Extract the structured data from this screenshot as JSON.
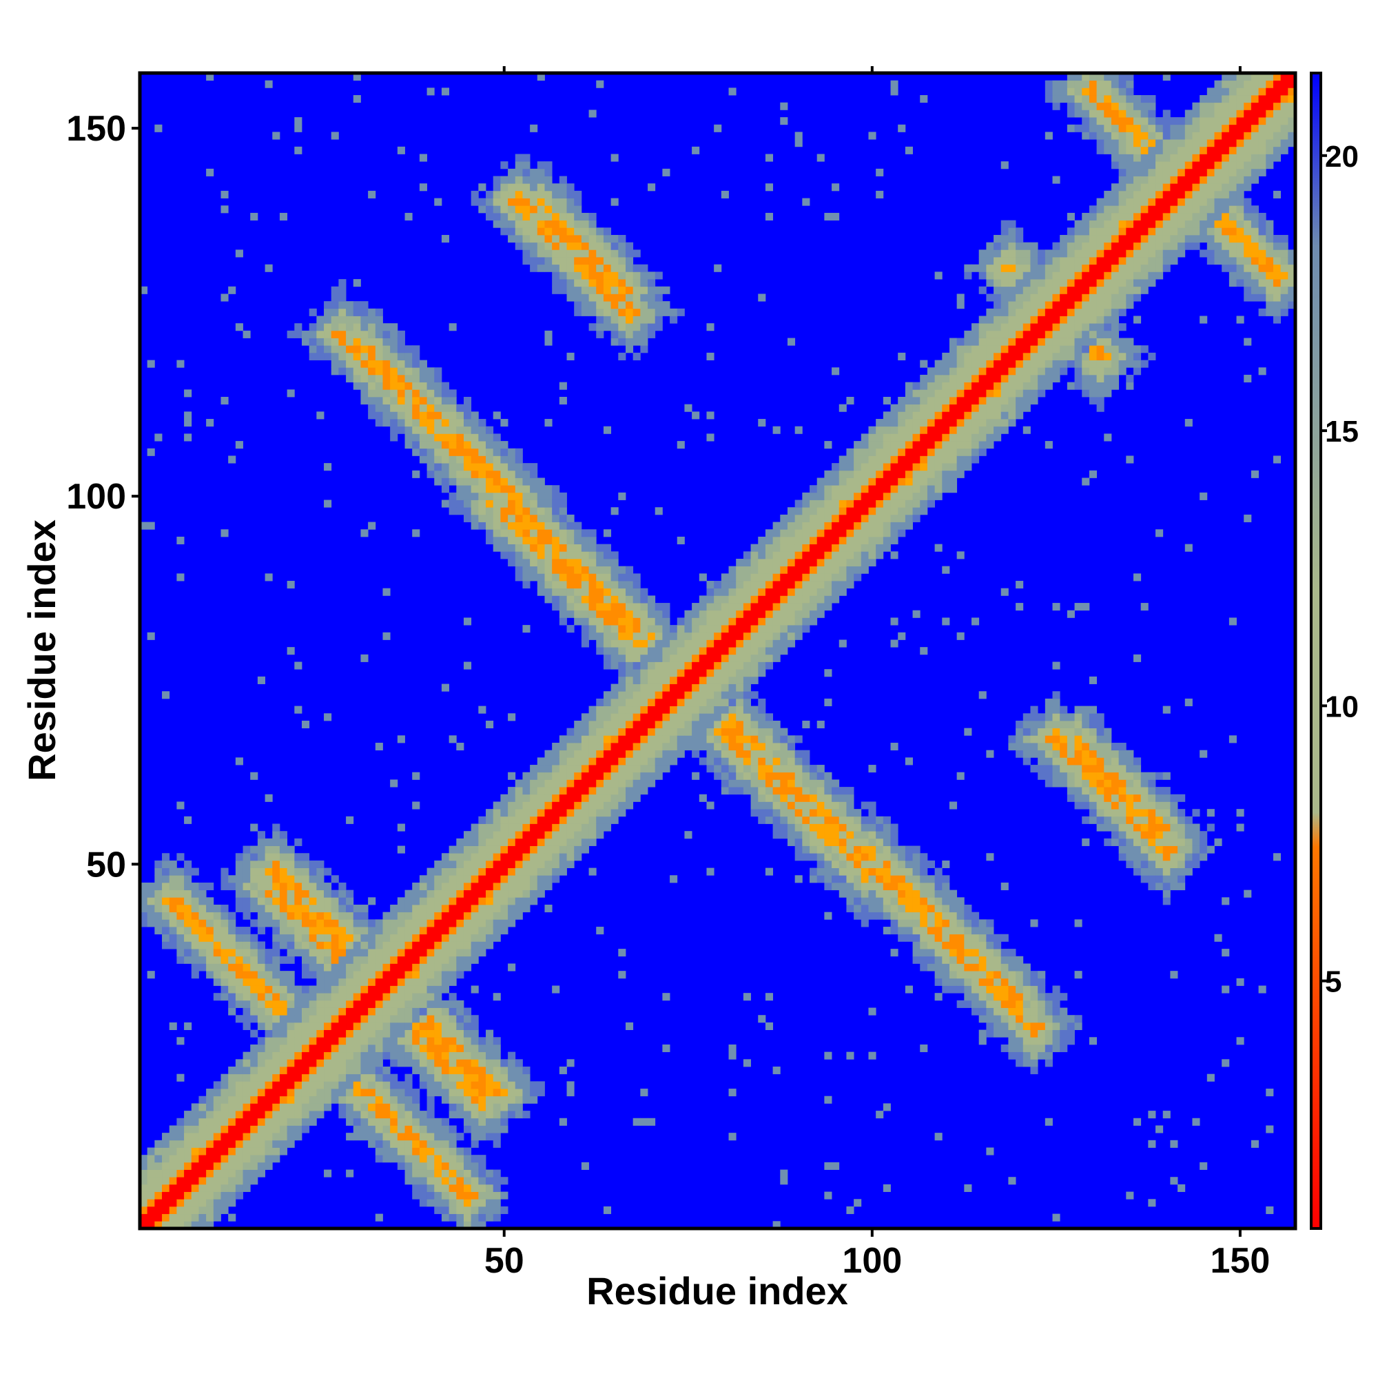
{
  "chart_data": {
    "type": "heatmap",
    "title": "",
    "xlabel": "Residue index",
    "ylabel": "Residue index",
    "xlim": [
      1,
      157
    ],
    "ylim": [
      1,
      157
    ],
    "xticks": [
      50,
      100,
      150
    ],
    "yticks": [
      50,
      100,
      150
    ],
    "colorbar": {
      "ticks": [
        5,
        10,
        15,
        20
      ],
      "range": [
        0.5,
        21.5
      ],
      "colors": [
        "#ff0000",
        "#ffa500",
        "#a9b88a",
        "#7090b0",
        "#0000ff"
      ]
    },
    "distance_contact_map": {
      "residues": 157,
      "cap_value": 21.5,
      "helices": [
        [
          2,
          6
        ],
        [
          10,
          14
        ],
        [
          19,
          27
        ],
        [
          31,
          37
        ],
        [
          43,
          50
        ],
        [
          52,
          58
        ],
        [
          61,
          66
        ],
        [
          70,
          80
        ],
        [
          85,
          93
        ],
        [
          96,
          104
        ],
        [
          108,
          116
        ],
        [
          120,
          128
        ],
        [
          131,
          136
        ],
        [
          139,
          146
        ],
        [
          150,
          155
        ]
      ],
      "antiparallel_bands": [
        {
          "i_start": 5,
          "j_start": 45,
          "length": 20
        },
        {
          "i_start": 18,
          "j_start": 47,
          "length": 10
        },
        {
          "i_start": 40,
          "j_start": 28,
          "length": 10
        },
        {
          "i_start": 28,
          "j_start": 122,
          "length": 42
        },
        {
          "i_start": 52,
          "j_start": 140,
          "length": 16
        },
        {
          "i_start": 80,
          "j_start": 68,
          "length": 20
        },
        {
          "i_start": 100,
          "j_start": 51,
          "length": 20
        },
        {
          "i_start": 128,
          "j_start": 66,
          "length": 12
        },
        {
          "i_start": 122,
          "j_start": 128,
          "length": 10
        },
        {
          "i_start": 132,
          "j_start": 153,
          "length": 24
        }
      ]
    }
  }
}
